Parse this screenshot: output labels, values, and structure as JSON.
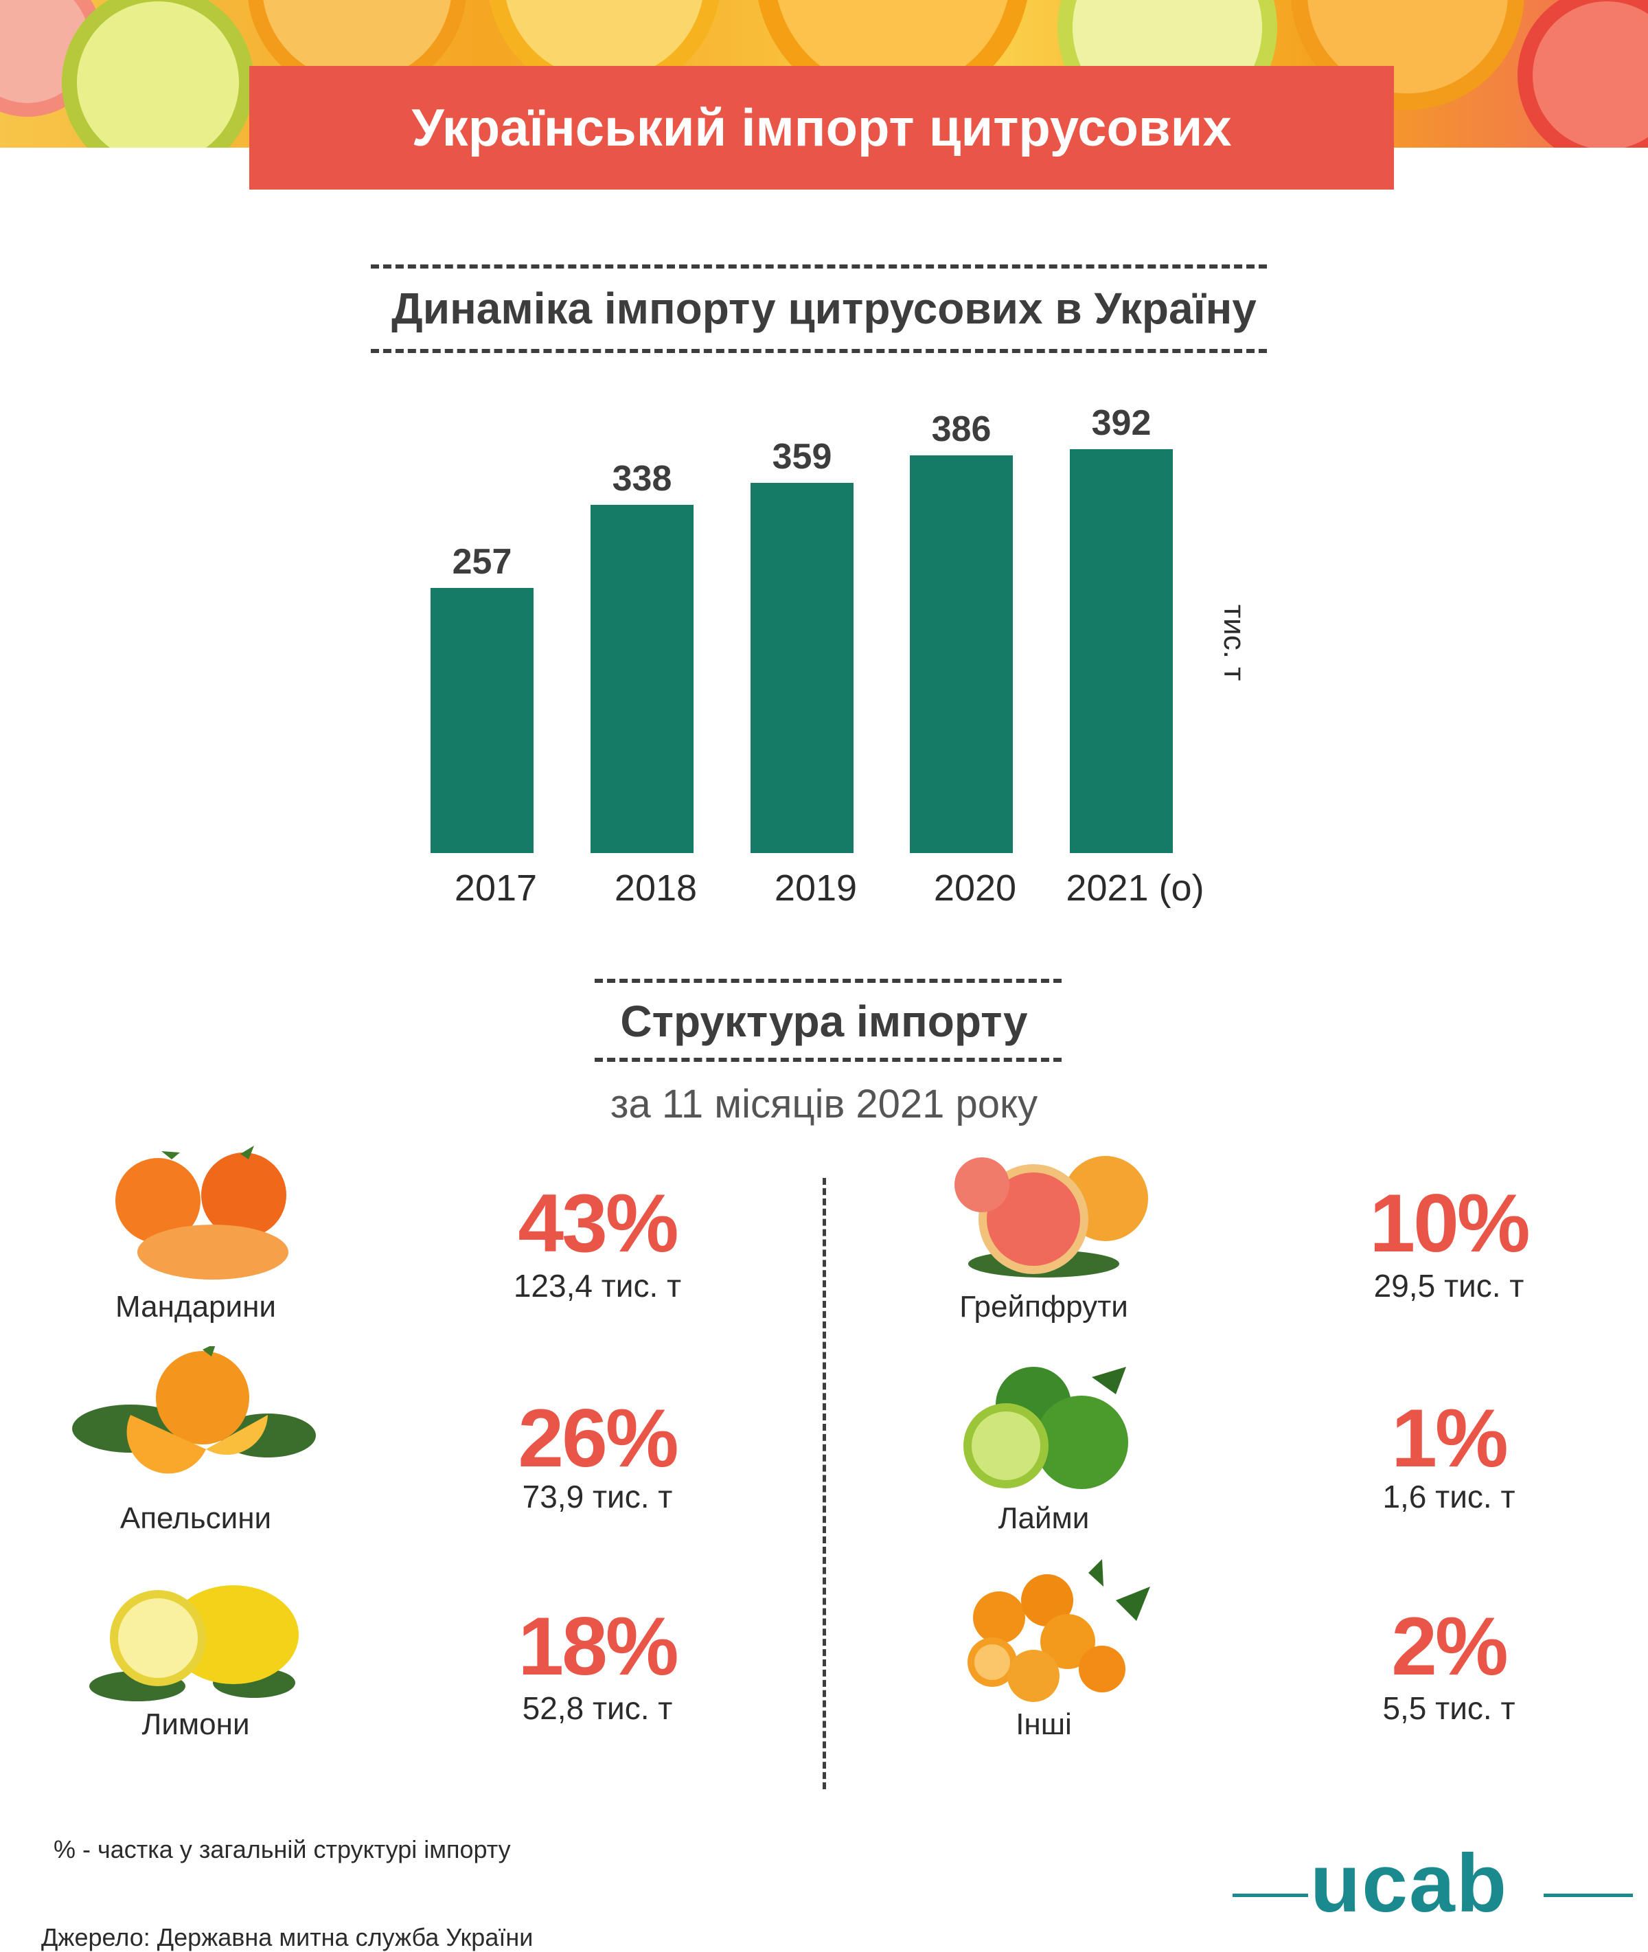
{
  "title": "Український імпорт цитрусових",
  "section1_title": "Динаміка імпорту цитрусових в Україну",
  "chart_data": {
    "type": "bar",
    "categories": [
      "2017",
      "2018",
      "2019",
      "2020",
      "2021 (о)"
    ],
    "values": [
      257,
      338,
      359,
      386,
      392
    ],
    "ylabel": "тис. т",
    "ylim": [
      0,
      392
    ],
    "colors": {
      "bar": "#157b67"
    }
  },
  "section2_title": "Структура імпорту",
  "section2_subtitle": "за 11 місяців 2021 року",
  "fruits": [
    {
      "name": "Мандарини",
      "percent": "43%",
      "amount": "123,4 тис. т",
      "icon": "tangerine-icon"
    },
    {
      "name": "Апельсини",
      "percent": "26%",
      "amount": "73,9 тис. т",
      "icon": "orange-icon"
    },
    {
      "name": "Лимони",
      "percent": "18%",
      "amount": "52,8 тис. т",
      "icon": "lemon-icon"
    },
    {
      "name": "Грейпфрути",
      "percent": "10%",
      "amount": "29,5 тис. т",
      "icon": "grapefruit-icon"
    },
    {
      "name": "Лайми",
      "percent": "1%",
      "amount": "1,6 тис. т",
      "icon": "lime-icon"
    },
    {
      "name": "Інші",
      "percent": "2%",
      "amount": "5,5 тис. т",
      "icon": "kumquat-icon"
    }
  ],
  "footnote": "% - частка у загальній структурі імпорту",
  "source": "Джерело: Державна митна служба України",
  "logo": "ucab",
  "colors": {
    "accent": "#e95547",
    "bar": "#157b67",
    "logo": "#1a8a8f"
  }
}
